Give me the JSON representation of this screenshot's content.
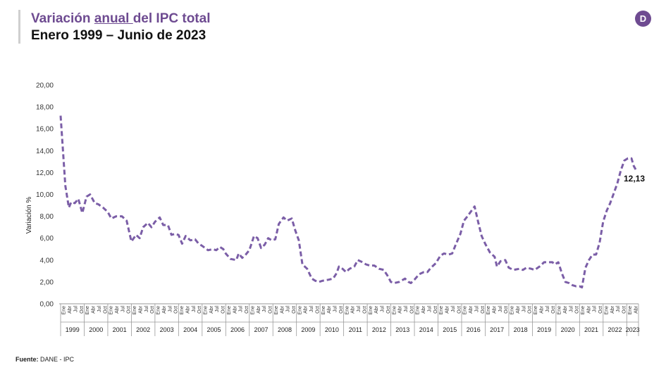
{
  "header": {
    "title_pre": "Variación ",
    "title_underlined": "anual ",
    "title_post": "del IPC total",
    "subtitle": "Enero 1999 – Junio de 2023"
  },
  "logo": {
    "letter": "D",
    "color": "#6e4b91",
    "icon": "dane-logo-icon"
  },
  "source": {
    "label": "Fuente:",
    "text": " DANE - IPC"
  },
  "chart_data": {
    "type": "line",
    "title": "Variación anual del IPC total",
    "subtitle": "Enero 1999 – Junio de 2023",
    "ylabel": "Variación %",
    "xlabel": "",
    "ylim": [
      0,
      20
    ],
    "yticks": [
      "0,00",
      "2,00",
      "4,00",
      "6,00",
      "8,00",
      "10,00",
      "12,00",
      "14,00",
      "16,00",
      "18,00",
      "20,00"
    ],
    "grid": false,
    "legend": "none",
    "line_color": "#7b5ea7",
    "line_style": "dashed",
    "quarter_tick_labels": [
      "Ene",
      "Abr",
      "Jul",
      "Oct"
    ],
    "last_quarter_tick_labels": [
      "Ene",
      "Abr"
    ],
    "years": [
      "1999",
      "2000",
      "2001",
      "2002",
      "2003",
      "2004",
      "2005",
      "2006",
      "2007",
      "2008",
      "2009",
      "2010",
      "2011",
      "2012",
      "2013",
      "2014",
      "2015",
      "2016",
      "2017",
      "2018",
      "2019",
      "2020",
      "2021",
      "2022",
      "2023"
    ],
    "end_label": "12,13",
    "series": [
      {
        "values": [
          [
            1999.0,
            17.2
          ],
          [
            1999.2,
            10.8
          ],
          [
            1999.35,
            8.8
          ],
          [
            1999.45,
            9.3
          ],
          [
            1999.6,
            9.2
          ],
          [
            1999.75,
            9.6
          ],
          [
            1999.92,
            8.3
          ],
          [
            2000.1,
            9.8
          ],
          [
            2000.25,
            10.0
          ],
          [
            2000.45,
            9.2
          ],
          [
            2000.6,
            9.1
          ],
          [
            2000.8,
            8.8
          ],
          [
            2001.0,
            8.4
          ],
          [
            2001.15,
            7.8
          ],
          [
            2001.35,
            8.0
          ],
          [
            2001.6,
            8.0
          ],
          [
            2001.8,
            7.6
          ],
          [
            2002.0,
            5.7
          ],
          [
            2002.2,
            6.3
          ],
          [
            2002.35,
            6.0
          ],
          [
            2002.5,
            7.0
          ],
          [
            2002.7,
            7.4
          ],
          [
            2002.85,
            7.0
          ],
          [
            2003.0,
            7.5
          ],
          [
            2003.2,
            7.9
          ],
          [
            2003.35,
            7.2
          ],
          [
            2003.55,
            7.2
          ],
          [
            2003.7,
            6.3
          ],
          [
            2003.85,
            6.4
          ],
          [
            2004.0,
            6.3
          ],
          [
            2004.15,
            5.5
          ],
          [
            2004.3,
            6.2
          ],
          [
            2004.5,
            5.8
          ],
          [
            2004.7,
            5.9
          ],
          [
            2004.85,
            5.5
          ],
          [
            2005.0,
            5.3
          ],
          [
            2005.25,
            4.9
          ],
          [
            2005.45,
            5.0
          ],
          [
            2005.6,
            4.9
          ],
          [
            2005.75,
            5.2
          ],
          [
            2005.9,
            5.0
          ],
          [
            2006.0,
            4.6
          ],
          [
            2006.2,
            4.1
          ],
          [
            2006.45,
            4.0
          ],
          [
            2006.55,
            4.6
          ],
          [
            2006.7,
            4.2
          ],
          [
            2006.85,
            4.5
          ],
          [
            2007.0,
            4.9
          ],
          [
            2007.2,
            6.2
          ],
          [
            2007.35,
            6.0
          ],
          [
            2007.5,
            5.1
          ],
          [
            2007.65,
            5.4
          ],
          [
            2007.8,
            6.0
          ],
          [
            2007.95,
            5.8
          ],
          [
            2008.1,
            5.9
          ],
          [
            2008.25,
            7.3
          ],
          [
            2008.45,
            7.9
          ],
          [
            2008.6,
            7.6
          ],
          [
            2008.8,
            7.8
          ],
          [
            2008.95,
            6.7
          ],
          [
            2009.1,
            5.8
          ],
          [
            2009.25,
            3.6
          ],
          [
            2009.45,
            3.2
          ],
          [
            2009.65,
            2.3
          ],
          [
            2009.8,
            2.1
          ],
          [
            2009.95,
            2.0
          ],
          [
            2010.1,
            2.1
          ],
          [
            2010.35,
            2.2
          ],
          [
            2010.55,
            2.3
          ],
          [
            2010.7,
            2.8
          ],
          [
            2010.8,
            3.4
          ],
          [
            2010.95,
            3.2
          ],
          [
            2011.1,
            2.9
          ],
          [
            2011.25,
            3.2
          ],
          [
            2011.45,
            3.4
          ],
          [
            2011.6,
            4.0
          ],
          [
            2011.8,
            3.8
          ],
          [
            2011.95,
            3.6
          ],
          [
            2012.1,
            3.5
          ],
          [
            2012.3,
            3.5
          ],
          [
            2012.5,
            3.2
          ],
          [
            2012.7,
            3.1
          ],
          [
            2012.85,
            2.6
          ],
          [
            2013.0,
            2.0
          ],
          [
            2013.15,
            1.9
          ],
          [
            2013.35,
            2.0
          ],
          [
            2013.6,
            2.3
          ],
          [
            2013.75,
            2.0
          ],
          [
            2013.85,
            1.9
          ],
          [
            2014.0,
            2.2
          ],
          [
            2014.2,
            2.7
          ],
          [
            2014.4,
            2.9
          ],
          [
            2014.55,
            2.9
          ],
          [
            2014.7,
            3.3
          ],
          [
            2014.9,
            3.7
          ],
          [
            2015.1,
            4.4
          ],
          [
            2015.25,
            4.6
          ],
          [
            2015.45,
            4.5
          ],
          [
            2015.6,
            4.6
          ],
          [
            2015.75,
            5.4
          ],
          [
            2015.95,
            6.4
          ],
          [
            2016.1,
            7.6
          ],
          [
            2016.25,
            8.0
          ],
          [
            2016.45,
            8.6
          ],
          [
            2016.55,
            8.9
          ],
          [
            2016.7,
            7.5
          ],
          [
            2016.85,
            6.2
          ],
          [
            2017.0,
            5.5
          ],
          [
            2017.2,
            4.7
          ],
          [
            2017.4,
            4.3
          ],
          [
            2017.5,
            3.4
          ],
          [
            2017.65,
            3.9
          ],
          [
            2017.85,
            4.0
          ],
          [
            2018.0,
            3.3
          ],
          [
            2018.2,
            3.1
          ],
          [
            2018.45,
            3.2
          ],
          [
            2018.6,
            3.1
          ],
          [
            2018.75,
            3.3
          ],
          [
            2018.95,
            3.2
          ],
          [
            2019.1,
            3.1
          ],
          [
            2019.3,
            3.4
          ],
          [
            2019.5,
            3.8
          ],
          [
            2019.7,
            3.8
          ],
          [
            2019.85,
            3.8
          ],
          [
            2019.95,
            3.6
          ],
          [
            2020.1,
            3.8
          ],
          [
            2020.25,
            2.8
          ],
          [
            2020.4,
            2.0
          ],
          [
            2020.55,
            1.9
          ],
          [
            2020.7,
            1.7
          ],
          [
            2020.85,
            1.6
          ],
          [
            2021.0,
            1.6
          ],
          [
            2021.1,
            1.5
          ],
          [
            2021.25,
            3.3
          ],
          [
            2021.4,
            4.0
          ],
          [
            2021.55,
            4.5
          ],
          [
            2021.7,
            4.5
          ],
          [
            2021.85,
            5.6
          ],
          [
            2022.0,
            7.5
          ],
          [
            2022.15,
            8.5
          ],
          [
            2022.3,
            9.2
          ],
          [
            2022.45,
            10.1
          ],
          [
            2022.6,
            11.0
          ],
          [
            2022.75,
            12.2
          ],
          [
            2022.9,
            13.1
          ],
          [
            2023.05,
            13.3
          ],
          [
            2023.2,
            13.3
          ],
          [
            2023.3,
            12.6
          ],
          [
            2023.42,
            12.13
          ]
        ]
      }
    ]
  }
}
